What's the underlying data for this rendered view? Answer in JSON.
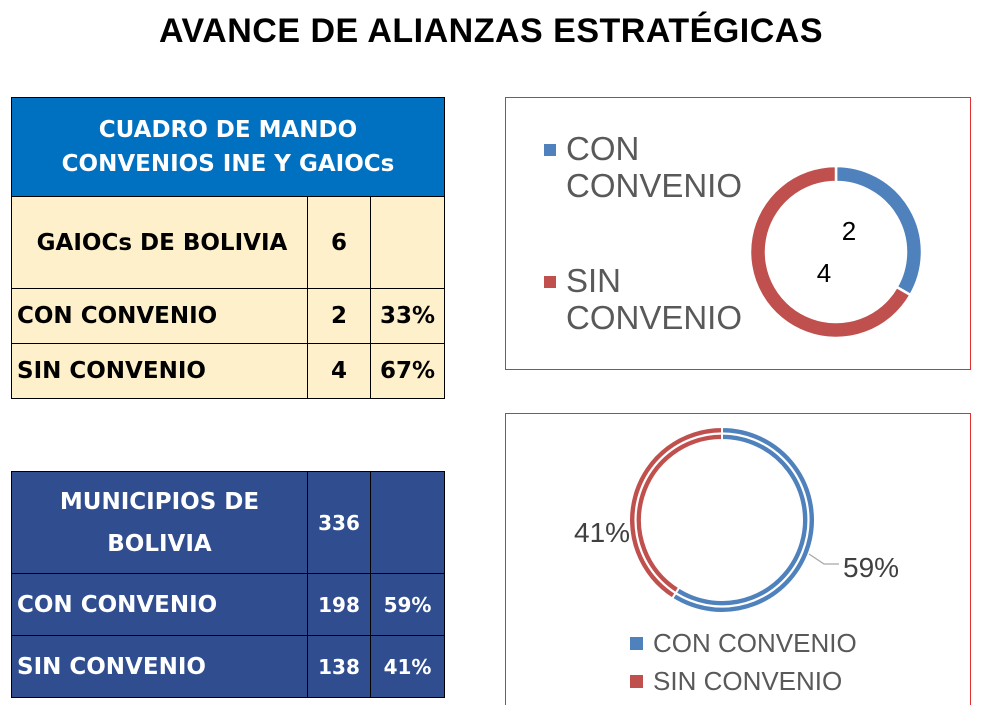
{
  "title": "AVANCE DE ALIANZAS ESTRATÉGICAS",
  "colors": {
    "con": "#4f81bd",
    "sin": "#c0504d",
    "header_blue": "#0070c0",
    "dark_blue": "#2f4d8f",
    "cream": "#fdf0cb"
  },
  "table1": {
    "header": [
      "CUADRO DE MANDO",
      "CONVENIOS INE Y GAIOCs"
    ],
    "rows": [
      {
        "label": "GAIOCs DE BOLIVIA",
        "value": "6",
        "pct": ""
      },
      {
        "label": "CON CONVENIO",
        "value": "2",
        "pct": "33%"
      },
      {
        "label": "SIN CONVENIO",
        "value": "4",
        "pct": "67%"
      }
    ]
  },
  "table2": {
    "rows": [
      {
        "label": [
          "MUNICIPIOS DE",
          "BOLIVIA"
        ],
        "value": "336",
        "pct": ""
      },
      {
        "label": "CON CONVENIO",
        "value": "198",
        "pct": "59%"
      },
      {
        "label": "SIN CONVENIO",
        "value": "138",
        "pct": "41%"
      }
    ]
  },
  "chart_data": [
    {
      "type": "pie",
      "variant": "donut",
      "categories": [
        "CON CONVENIO",
        "SIN CONVENIO"
      ],
      "values": [
        2,
        4
      ],
      "data_labels": [
        "2",
        "4"
      ],
      "legend": {
        "position": "left",
        "entries": [
          [
            "CON",
            "CONVENIO"
          ],
          [
            "SIN",
            "CONVENIO"
          ]
        ]
      }
    },
    {
      "type": "pie",
      "variant": "donut",
      "categories": [
        "CON CONVENIO",
        "SIN CONVENIO"
      ],
      "values": [
        59,
        41
      ],
      "data_labels": [
        "59%",
        "41%"
      ],
      "legend": {
        "position": "bottom",
        "entries": [
          "CON CONVENIO",
          "SIN CONVENIO"
        ]
      }
    }
  ]
}
